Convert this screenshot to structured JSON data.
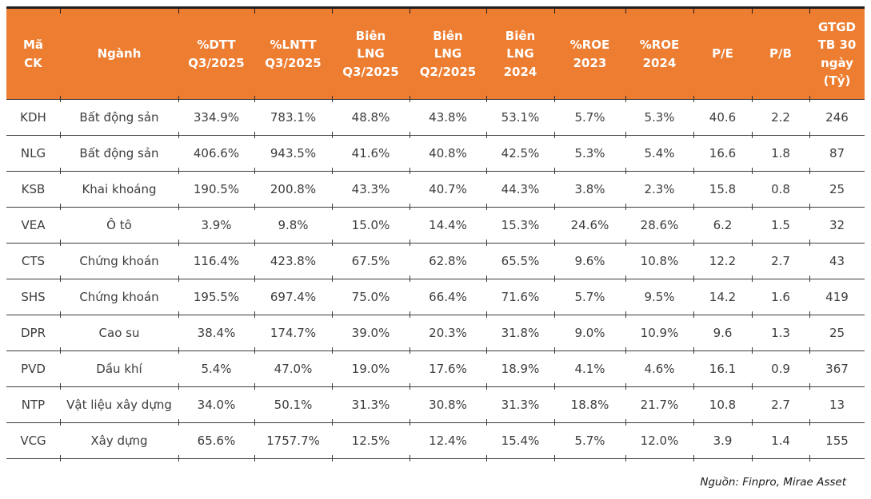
{
  "chart_data": {
    "type": "table",
    "title": "",
    "columns": [
      "Mã CK",
      "Ngành",
      "%DTT Q3/2025",
      "%LNTT Q3/2025",
      "Biên LNG Q3/2025",
      "Biên LNG Q2/2025",
      "Biên LNG 2024",
      "%ROE 2023",
      "%ROE 2024",
      "P/E",
      "P/B",
      "GTGD TB 30 ngày (Tỷ)"
    ],
    "rows": [
      [
        "KDH",
        "Bất động sản",
        "334.9%",
        "783.1%",
        "48.8%",
        "43.8%",
        "53.1%",
        "5.7%",
        "5.3%",
        "40.6",
        "2.2",
        "246"
      ],
      [
        "NLG",
        "Bất động sản",
        "406.6%",
        "943.5%",
        "41.6%",
        "40.8%",
        "42.5%",
        "5.3%",
        "5.4%",
        "16.6",
        "1.8",
        "87"
      ],
      [
        "KSB",
        "Khai khoáng",
        "190.5%",
        "200.8%",
        "43.3%",
        "40.7%",
        "44.3%",
        "3.8%",
        "2.3%",
        "15.8",
        "0.8",
        "25"
      ],
      [
        "VEA",
        "Ô tô",
        "3.9%",
        "9.8%",
        "15.0%",
        "14.4%",
        "15.3%",
        "24.6%",
        "28.6%",
        "6.2",
        "1.5",
        "32"
      ],
      [
        "CTS",
        "Chứng khoán",
        "116.4%",
        "423.8%",
        "67.5%",
        "62.8%",
        "65.5%",
        "9.6%",
        "10.8%",
        "12.2",
        "2.7",
        "43"
      ],
      [
        "SHS",
        "Chứng khoán",
        "195.5%",
        "697.4%",
        "75.0%",
        "66.4%",
        "71.6%",
        "5.7%",
        "9.5%",
        "14.2",
        "1.6",
        "419"
      ],
      [
        "DPR",
        "Cao su",
        "38.4%",
        "174.7%",
        "39.0%",
        "20.3%",
        "31.8%",
        "9.0%",
        "10.9%",
        "9.6",
        "1.3",
        "25"
      ],
      [
        "PVD",
        "Dầu khí",
        "5.4%",
        "47.0%",
        "19.0%",
        "17.6%",
        "18.9%",
        "4.1%",
        "4.6%",
        "16.1",
        "0.9",
        "367"
      ],
      [
        "NTP",
        "Vật liệu xây dựng",
        "34.0%",
        "50.1%",
        "31.3%",
        "30.8%",
        "31.3%",
        "18.8%",
        "21.7%",
        "10.8",
        "2.7",
        "13"
      ],
      [
        "VCG",
        "Xây dựng",
        "65.6%",
        "1757.7%",
        "12.5%",
        "12.4%",
        "15.4%",
        "5.7%",
        "12.0%",
        "3.9",
        "1.4",
        "155"
      ]
    ],
    "layout": {
      "header_position": "top",
      "alignment": "center",
      "grid": "horizontal-lines-with-ticks"
    }
  },
  "table": {
    "header_labels": [
      "Mã\nCK",
      "Ngành",
      "%DTT\nQ3/2025",
      "%LNTT\nQ3/2025",
      "Biên\nLNG\nQ3/2025",
      "Biên\nLNG\nQ2/2025",
      "Biên\nLNG\n2024",
      "%ROE\n2023",
      "%ROE\n2024",
      "P/E",
      "P/B",
      "GTGD\nTB 30\nngày\n(Tỷ)"
    ]
  },
  "colors": {
    "header_bg": "#ED7D31",
    "header_text": "#FFFFFF",
    "body_text": "#3D3D3D",
    "border": "#333333",
    "background": "#FFFFFF"
  },
  "footer": {
    "source_note": "Nguồn: Finpro, Mirae Asset"
  }
}
